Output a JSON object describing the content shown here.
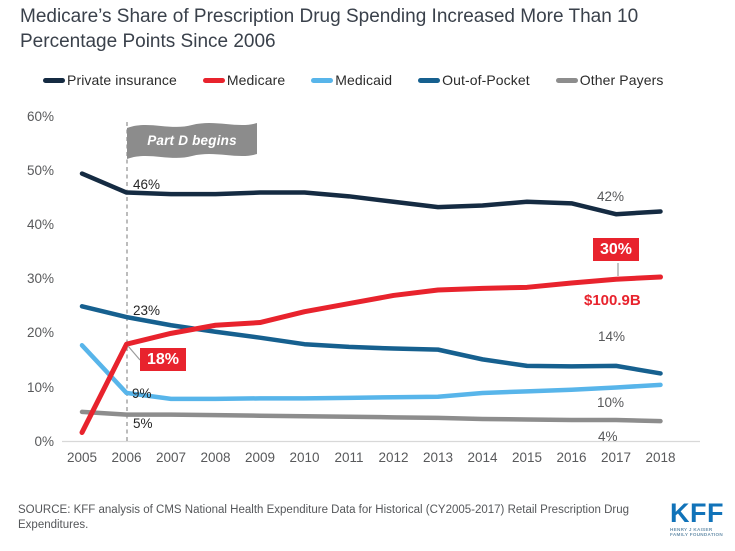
{
  "title": "Medicare’s Share of Prescription Drug Spending Increased More Than 10 Percentage Points Since 2006",
  "chart_data": {
    "type": "line",
    "x": [
      2005,
      2006,
      2007,
      2008,
      2009,
      2010,
      2011,
      2012,
      2013,
      2014,
      2015,
      2016,
      2017,
      2018
    ],
    "ylim": [
      0,
      60
    ],
    "grid": false,
    "legend_position": "top",
    "y_ticks": [
      {
        "label": "60%",
        "value": 60
      },
      {
        "label": "50%",
        "value": 50
      },
      {
        "label": "40%",
        "value": 40
      },
      {
        "label": "30%",
        "value": 30
      },
      {
        "label": "20%",
        "value": 20
      },
      {
        "label": "10%",
        "value": 10
      },
      {
        "label": "0%",
        "value": 0
      }
    ],
    "series": [
      {
        "name": "Private insurance",
        "color": "#152b42",
        "values": [
          49.5,
          46,
          45.7,
          45.7,
          46,
          46,
          45.3,
          44.3,
          43.3,
          43.6,
          44.3,
          44,
          42,
          42.5
        ]
      },
      {
        "name": "Medicare",
        "color": "#e8232d",
        "values": [
          1.7,
          18,
          20,
          21.5,
          22,
          24,
          25.5,
          27,
          28,
          28.3,
          28.5,
          29.3,
          30,
          30.4
        ]
      },
      {
        "name": "Medicaid",
        "color": "#58b5ea",
        "values": [
          17.8,
          9,
          7.9,
          7.9,
          8,
          8,
          8.1,
          8.2,
          8.3,
          9,
          9.3,
          9.6,
          10,
          10.5
        ]
      },
      {
        "name": "Out-of-Pocket",
        "color": "#16608f",
        "values": [
          25,
          23,
          21.5,
          20.3,
          19.2,
          18,
          17.5,
          17.2,
          17,
          15.2,
          14,
          13.9,
          14,
          12.6
        ]
      },
      {
        "name": "Other Payers",
        "color": "#8d8d8d",
        "values": [
          5.5,
          5,
          5,
          4.9,
          4.8,
          4.7,
          4.6,
          4.5,
          4.4,
          4.2,
          4.1,
          4,
          4,
          3.8
        ]
      }
    ]
  },
  "annotations": {
    "part_d_flag": "Part D begins",
    "left": {
      "private_insurance_2006": "46%",
      "out_of_pocket_2006": "23%",
      "medicare_2006": "18%",
      "medicaid_2006": "9%",
      "other_payers_2006": "5%"
    },
    "right": {
      "private_insurance_2017": "42%",
      "medicare_2017": "30%",
      "medicare_spending_2017": "$100.9B",
      "out_of_pocket_2017": "14%",
      "medicaid_2017": "10%",
      "other_payers_2017": "4%"
    }
  },
  "source": "SOURCE: KFF analysis of CMS National Health Expenditure Data for Historical (CY2005-2017) Retail Prescription Drug Expenditures.",
  "logo": {
    "kff": "KFF",
    "tagline_line1": "HENRY J KAISER",
    "tagline_line2": "FAMILY FOUNDATION"
  },
  "colors": {
    "accent_red": "#e8232d",
    "kff_blue": "#1173b9"
  }
}
